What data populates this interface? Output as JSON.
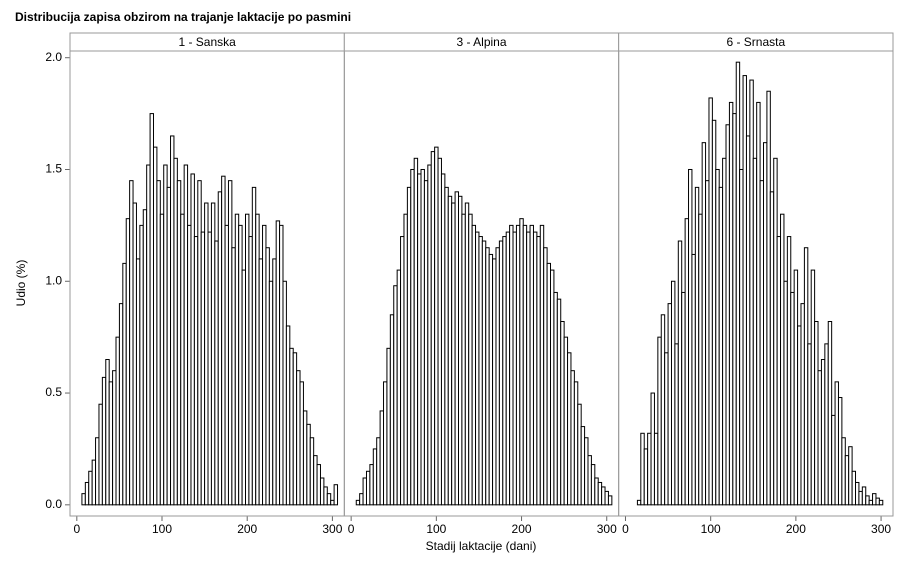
{
  "chart_data": {
    "type": "histogram",
    "title": "Distribucija zapisa obzirom na trajanje laktacije po pasmini",
    "x_label": "Stadij laktacije (dani)",
    "y_label": "Udio (%)",
    "bins": [
      6,
      10,
      14,
      18,
      22,
      26,
      30,
      34,
      38,
      42,
      46,
      50,
      54,
      58,
      62,
      66,
      70,
      74,
      78,
      82,
      86,
      90,
      94,
      98,
      102,
      106,
      110,
      114,
      118,
      122,
      126,
      130,
      134,
      138,
      142,
      146,
      150,
      154,
      158,
      162,
      166,
      170,
      174,
      178,
      182,
      186,
      190,
      194,
      198,
      202,
      206,
      210,
      214,
      218,
      222,
      226,
      230,
      234,
      238,
      242,
      246,
      250,
      254,
      258,
      262,
      266,
      270,
      274,
      278,
      282,
      286,
      290,
      294,
      298,
      302,
      306
    ],
    "panels": [
      {
        "name": "1 - Sanska",
        "values": [
          0.05,
          0.1,
          0.15,
          0.2,
          0.3,
          0.45,
          0.57,
          0.65,
          0.55,
          0.6,
          0.75,
          0.9,
          1.08,
          1.28,
          1.45,
          1.35,
          1.1,
          1.25,
          1.32,
          1.52,
          1.75,
          1.6,
          1.45,
          1.3,
          1.52,
          1.42,
          1.65,
          1.55,
          1.45,
          1.3,
          1.52,
          1.25,
          1.48,
          1.2,
          1.45,
          1.22,
          1.35,
          1.22,
          1.35,
          1.18,
          1.4,
          1.47,
          1.25,
          1.45,
          1.15,
          1.3,
          1.25,
          1.05,
          1.3,
          1.2,
          1.42,
          1.3,
          1.1,
          1.25,
          1.15,
          1.0,
          1.1,
          1.27,
          1.25,
          1.0,
          0.8,
          0.7,
          0.68,
          0.6,
          0.55,
          0.42,
          0.36,
          0.3,
          0.22,
          0.18,
          0.12,
          0.08,
          0.05,
          0.02,
          0.09
        ]
      },
      {
        "name": "3 - Alpina",
        "values": [
          0.02,
          0.05,
          0.12,
          0.15,
          0.18,
          0.25,
          0.3,
          0.42,
          0.55,
          0.7,
          0.85,
          0.98,
          1.05,
          1.2,
          1.3,
          1.42,
          1.5,
          1.55,
          1.48,
          1.5,
          1.45,
          1.52,
          1.58,
          1.6,
          1.55,
          1.48,
          1.42,
          1.38,
          1.35,
          1.4,
          1.38,
          1.3,
          1.35,
          1.3,
          1.25,
          1.22,
          1.2,
          1.18,
          1.15,
          1.12,
          1.1,
          1.15,
          1.18,
          1.2,
          1.22,
          1.25,
          1.22,
          1.25,
          1.28,
          1.25,
          1.22,
          1.25,
          1.22,
          1.2,
          1.25,
          1.15,
          1.08,
          1.05,
          0.95,
          0.92,
          0.82,
          0.75,
          0.68,
          0.6,
          0.55,
          0.45,
          0.35,
          0.3,
          0.22,
          0.18,
          0.12,
          0.1,
          0.08,
          0.06,
          0.04
        ]
      },
      {
        "name": "6 - Srnasta",
        "values": [
          0,
          0,
          0.02,
          0.32,
          0.25,
          0.32,
          0.5,
          0.32,
          0.75,
          0.85,
          0.68,
          0.9,
          1.0,
          0.72,
          1.18,
          0.95,
          1.28,
          1.5,
          1.12,
          1.42,
          1.3,
          1.62,
          1.45,
          1.82,
          1.72,
          1.5,
          1.42,
          1.55,
          1.7,
          1.8,
          1.75,
          1.98,
          1.5,
          1.92,
          1.65,
          1.9,
          1.55,
          1.8,
          1.45,
          1.62,
          1.85,
          1.4,
          1.55,
          1.2,
          1.3,
          1.0,
          1.2,
          0.95,
          1.05,
          0.8,
          0.9,
          1.15,
          0.72,
          1.05,
          0.82,
          0.6,
          0.65,
          0.72,
          0.82,
          0.4,
          0.55,
          0.48,
          0.3,
          0.22,
          0.26,
          0.15,
          0.1,
          0.06,
          0.08,
          0.04,
          0.02,
          0.05,
          0.03,
          0.02,
          0
        ]
      }
    ],
    "color": "#ffffff",
    "edge_color": "#000000",
    "xlim": [
      -8,
      314
    ],
    "xticks": [
      0,
      100,
      200,
      300
    ],
    "ylim": [
      -0.05,
      2.03
    ],
    "yticks": [
      {
        "value": 0,
        "label": "0.0"
      },
      0.5,
      {
        "value": 1,
        "label": "1.0"
      },
      1.5,
      {
        "value": 2,
        "label": "2.0"
      }
    ]
  }
}
